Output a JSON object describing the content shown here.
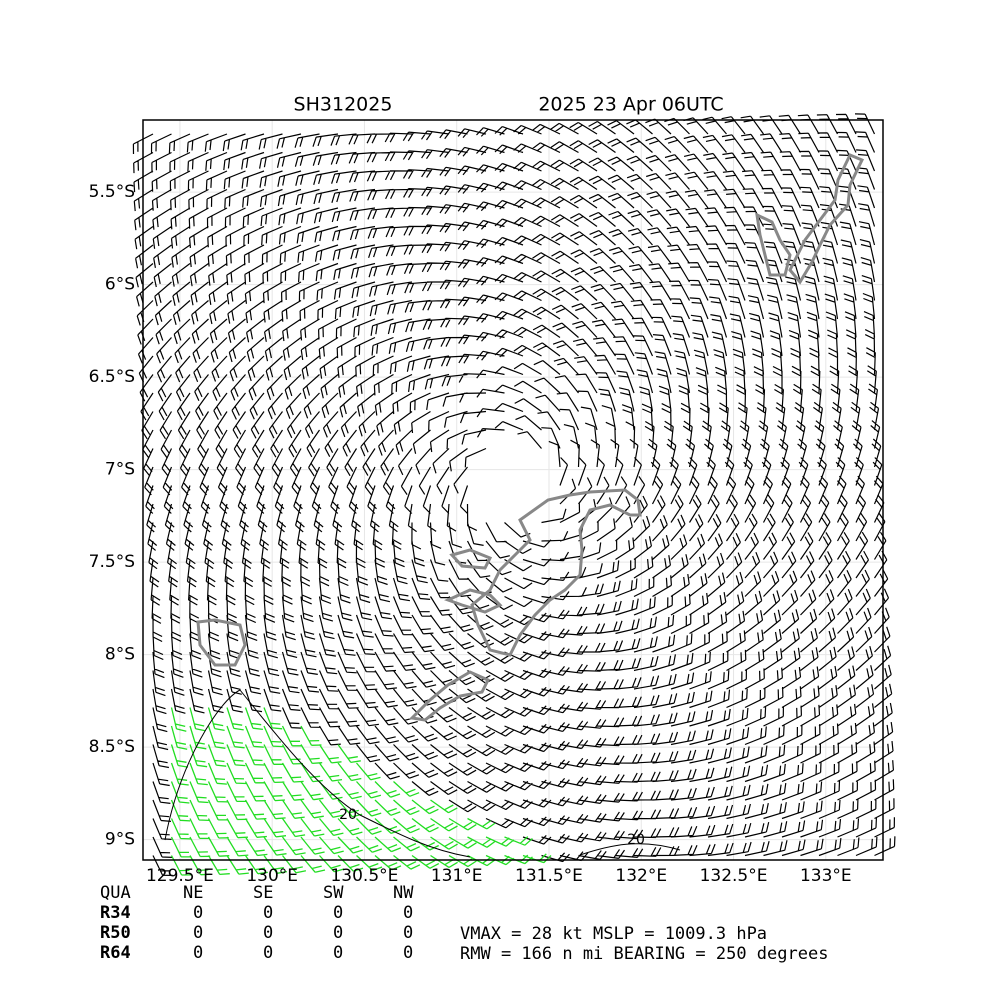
{
  "map": {
    "title_left": "SH312025",
    "title_right": "2025 23 Apr 06UTC",
    "lon_range": [
      129.3,
      133.31
    ],
    "lat_range": [
      -5.11,
      -9.11
    ],
    "lat_ticks": [
      {
        "value": -5.5,
        "label": "5.5°S"
      },
      {
        "value": -6,
        "label": "6°S"
      },
      {
        "value": -6.5,
        "label": "6.5°S"
      },
      {
        "value": -7,
        "label": "7°S"
      },
      {
        "value": -7.5,
        "label": "7.5°S"
      },
      {
        "value": -8,
        "label": "8°S"
      },
      {
        "value": -8.5,
        "label": "8.5°S"
      },
      {
        "value": -9,
        "label": "9°S"
      }
    ],
    "lon_ticks": [
      {
        "value": 129.5,
        "label": "129.5°E"
      },
      {
        "value": 130,
        "label": "130°E"
      },
      {
        "value": 130.5,
        "label": "130.5°E"
      },
      {
        "value": 131,
        "label": "131°E"
      },
      {
        "value": 131.5,
        "label": "131.5°E"
      },
      {
        "value": 132,
        "label": "132°E"
      },
      {
        "value": 132.5,
        "label": "132.5°E"
      },
      {
        "value": 133,
        "label": "133°E"
      }
    ],
    "contour_labels": [
      "20",
      "20"
    ]
  },
  "table": {
    "header": [
      "QUA",
      "NE",
      "SE",
      "SW",
      "NW"
    ],
    "rows": [
      [
        "R34",
        "0",
        "0",
        "0",
        "0"
      ],
      [
        "R50",
        "0",
        "0",
        "0",
        "0"
      ],
      [
        "R64",
        "0",
        "0",
        "0",
        "0"
      ]
    ]
  },
  "info": [
    "VMAX =  28 kt MSLP = 1009.3 hPa",
    "RMW = 166 n mi BEARING = 250 degrees"
  ]
}
